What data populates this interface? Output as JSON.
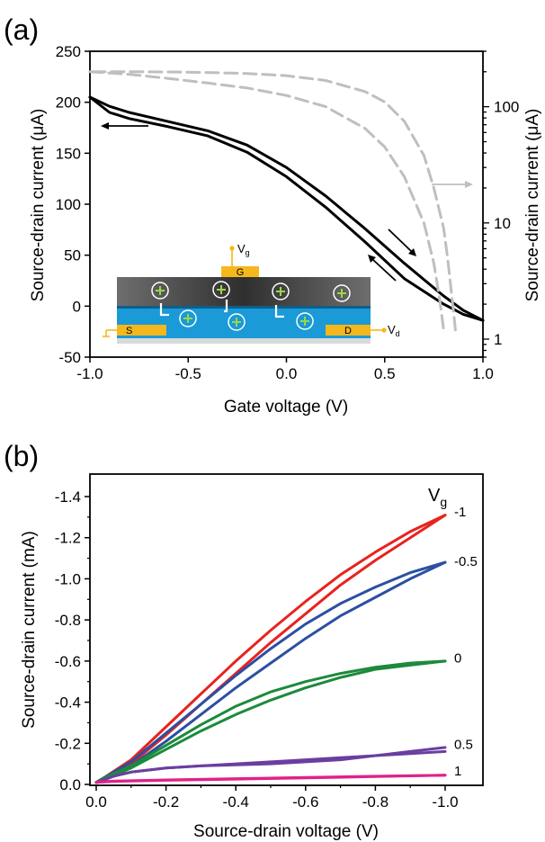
{
  "panels": [
    {
      "id": "a",
      "label": "(a)",
      "chart_data": {
        "type": "line",
        "xlabel": "Gate voltage (V)",
        "ylabel": "Source-drain current (μA)",
        "ylabel_right": "Source-drain current (μA)",
        "xlim": [
          -1.0,
          1.0
        ],
        "ylim": [
          -50,
          250
        ],
        "y2lim_log": [
          0.7,
          300
        ],
        "x_ticks": [
          "-1.0",
          "-0.5",
          "0.0",
          "0.5",
          "1.0"
        ],
        "y_ticks": [
          "250",
          "200",
          "150",
          "100",
          "50",
          "0",
          "-50"
        ],
        "y2_ticks": [
          "100",
          "10",
          "1"
        ],
        "series": [
          {
            "axis": "left",
            "color": "#000000",
            "style": "solid",
            "x": [
              -1.0,
              -0.9,
              -0.8,
              -0.6,
              -0.4,
              -0.2,
              0.0,
              0.2,
              0.4,
              0.6,
              0.8,
              0.9,
              1.0
            ],
            "y": [
              205,
              196,
              190,
              181,
              172,
              158,
              136,
              108,
              76,
              42,
              10,
              -4,
              -14
            ]
          },
          {
            "axis": "left",
            "color": "#000000",
            "style": "solid",
            "x": [
              1.0,
              0.9,
              0.8,
              0.6,
              0.4,
              0.2,
              0.0,
              -0.2,
              -0.4,
              -0.6,
              -0.8,
              -0.9,
              -1.0
            ],
            "y": [
              -14,
              -8,
              2,
              27,
              63,
              97,
              127,
              151,
              167,
              176,
              184,
              190,
              205
            ]
          },
          {
            "axis": "right",
            "color": "#bfbfbf",
            "style": "dashed",
            "x": [
              -1.0,
              -0.8,
              -0.6,
              -0.4,
              -0.2,
              0.0,
              0.2,
              0.4,
              0.5,
              0.6,
              0.7,
              0.75,
              0.78,
              0.8
            ],
            "y": [
              200,
              190,
              175,
              160,
              145,
              125,
              100,
              65,
              45,
              25,
              10,
              4.5,
              2.2,
              1.2
            ]
          },
          {
            "axis": "right",
            "color": "#bfbfbf",
            "style": "dashed",
            "x": [
              0.86,
              0.84,
              0.82,
              0.8,
              0.75,
              0.7,
              0.6,
              0.5,
              0.4,
              0.2,
              0.0,
              -0.2,
              -0.4,
              -0.6,
              -0.8,
              -1.0
            ],
            "y": [
              1.2,
              2.5,
              5,
              9,
              20,
              38,
              75,
              110,
              135,
              168,
              185,
              193,
              197,
              199,
              200,
              200
            ]
          }
        ]
      },
      "inset": {
        "gate_label": "G",
        "vg_label": "V",
        "vg_sub": "g",
        "source_label": "S",
        "drain_label": "D",
        "vd_label": "V",
        "vd_sub": "d",
        "colors": {
          "gate_layer": "#555555",
          "channel": "#1a9ad6",
          "electrode": "#f5b81c",
          "substrate": "#d9d9d9"
        }
      }
    },
    {
      "id": "b",
      "label": "(b)",
      "chart_data": {
        "type": "line",
        "xlabel": "Source-drain voltage (V)",
        "ylabel": "Source-drain current (mA)",
        "xlim": [
          0.0,
          -1.0
        ],
        "ylim": [
          0.0,
          -1.4
        ],
        "x_ticks": [
          "0.0",
          "-0.2",
          "-0.4",
          "-0.6",
          "-0.8",
          "-1.0"
        ],
        "y_ticks": [
          "-1.4",
          "-1.2",
          "-1.0",
          "-0.8",
          "-0.6",
          "-0.4",
          "-0.2",
          "0.0"
        ],
        "legend_title": "V",
        "legend_title_sub": "g",
        "series": [
          {
            "name": "-1",
            "color": "#e8231e",
            "fwd": {
              "x": [
                0,
                -0.02,
                -0.1,
                -0.2,
                -0.3,
                -0.4,
                -0.5,
                -0.6,
                -0.7,
                -0.8,
                -0.9,
                -1.0
              ],
              "y": [
                -0.01,
                -0.02,
                -0.1,
                -0.24,
                -0.39,
                -0.54,
                -0.69,
                -0.83,
                -0.97,
                -1.09,
                -1.2,
                -1.31
              ]
            },
            "rev": {
              "x": [
                -1.0,
                -0.9,
                -0.8,
                -0.7,
                -0.6,
                -0.5,
                -0.4,
                -0.3,
                -0.2,
                -0.1,
                -0.02,
                0
              ],
              "y": [
                -1.31,
                -1.23,
                -1.13,
                -1.02,
                -0.89,
                -0.75,
                -0.6,
                -0.44,
                -0.28,
                -0.12,
                -0.03,
                -0.01
              ]
            }
          },
          {
            "name": "-0.5",
            "color": "#2b4fa3",
            "fwd": {
              "x": [
                0,
                -0.02,
                -0.1,
                -0.2,
                -0.3,
                -0.4,
                -0.5,
                -0.6,
                -0.7,
                -0.8,
                -0.9,
                -1.0
              ],
              "y": [
                -0.01,
                -0.02,
                -0.09,
                -0.21,
                -0.34,
                -0.47,
                -0.59,
                -0.71,
                -0.82,
                -0.91,
                -1.0,
                -1.08
              ]
            },
            "rev": {
              "x": [
                -1.0,
                -0.9,
                -0.8,
                -0.7,
                -0.6,
                -0.5,
                -0.4,
                -0.3,
                -0.2,
                -0.1,
                -0.02,
                0
              ],
              "y": [
                -1.08,
                -1.03,
                -0.96,
                -0.88,
                -0.78,
                -0.66,
                -0.53,
                -0.39,
                -0.25,
                -0.11,
                -0.03,
                -0.01
              ]
            }
          },
          {
            "name": "0",
            "color": "#1c8a3c",
            "fwd": {
              "x": [
                0,
                -0.02,
                -0.1,
                -0.2,
                -0.3,
                -0.4,
                -0.5,
                -0.6,
                -0.7,
                -0.8,
                -0.9,
                -1.0
              ],
              "y": [
                -0.01,
                -0.02,
                -0.08,
                -0.17,
                -0.26,
                -0.34,
                -0.41,
                -0.47,
                -0.52,
                -0.56,
                -0.58,
                -0.6
              ]
            },
            "rev": {
              "x": [
                -1.0,
                -0.9,
                -0.8,
                -0.7,
                -0.6,
                -0.5,
                -0.4,
                -0.3,
                -0.2,
                -0.1,
                -0.02,
                0
              ],
              "y": [
                -0.6,
                -0.59,
                -0.57,
                -0.54,
                -0.5,
                -0.45,
                -0.38,
                -0.29,
                -0.19,
                -0.09,
                -0.03,
                -0.01
              ]
            }
          },
          {
            "name": "0.5",
            "color": "#6a3fa0",
            "fwd": {
              "x": [
                0,
                -0.02,
                -0.05,
                -0.1,
                -0.2,
                -0.3,
                -0.4,
                -0.5,
                -0.6,
                -0.7,
                -0.8,
                -0.9,
                -1.0
              ],
              "y": [
                -0.01,
                -0.02,
                -0.04,
                -0.06,
                -0.08,
                -0.09,
                -0.1,
                -0.11,
                -0.12,
                -0.13,
                -0.14,
                -0.15,
                -0.16
              ]
            },
            "rev": {
              "x": [
                -1.0,
                -0.9,
                -0.8,
                -0.7,
                -0.6,
                -0.5,
                -0.4,
                -0.3,
                -0.2,
                -0.1,
                -0.05,
                0
              ],
              "y": [
                -0.18,
                -0.16,
                -0.14,
                -0.12,
                -0.11,
                -0.1,
                -0.095,
                -0.09,
                -0.08,
                -0.06,
                -0.04,
                -0.01
              ]
            }
          },
          {
            "name": "1",
            "color": "#e0218a",
            "fwd": {
              "x": [
                0,
                -0.05,
                -0.2,
                -0.4,
                -0.6,
                -0.8,
                -1.0
              ],
              "y": [
                -0.01,
                -0.015,
                -0.02,
                -0.026,
                -0.032,
                -0.038,
                -0.045
              ]
            },
            "rev": {
              "x": [
                -1.0,
                -0.8,
                -0.6,
                -0.4,
                -0.2,
                -0.05,
                0
              ],
              "y": [
                -0.045,
                -0.04,
                -0.034,
                -0.028,
                -0.022,
                -0.016,
                -0.01
              ]
            }
          }
        ]
      }
    }
  ]
}
